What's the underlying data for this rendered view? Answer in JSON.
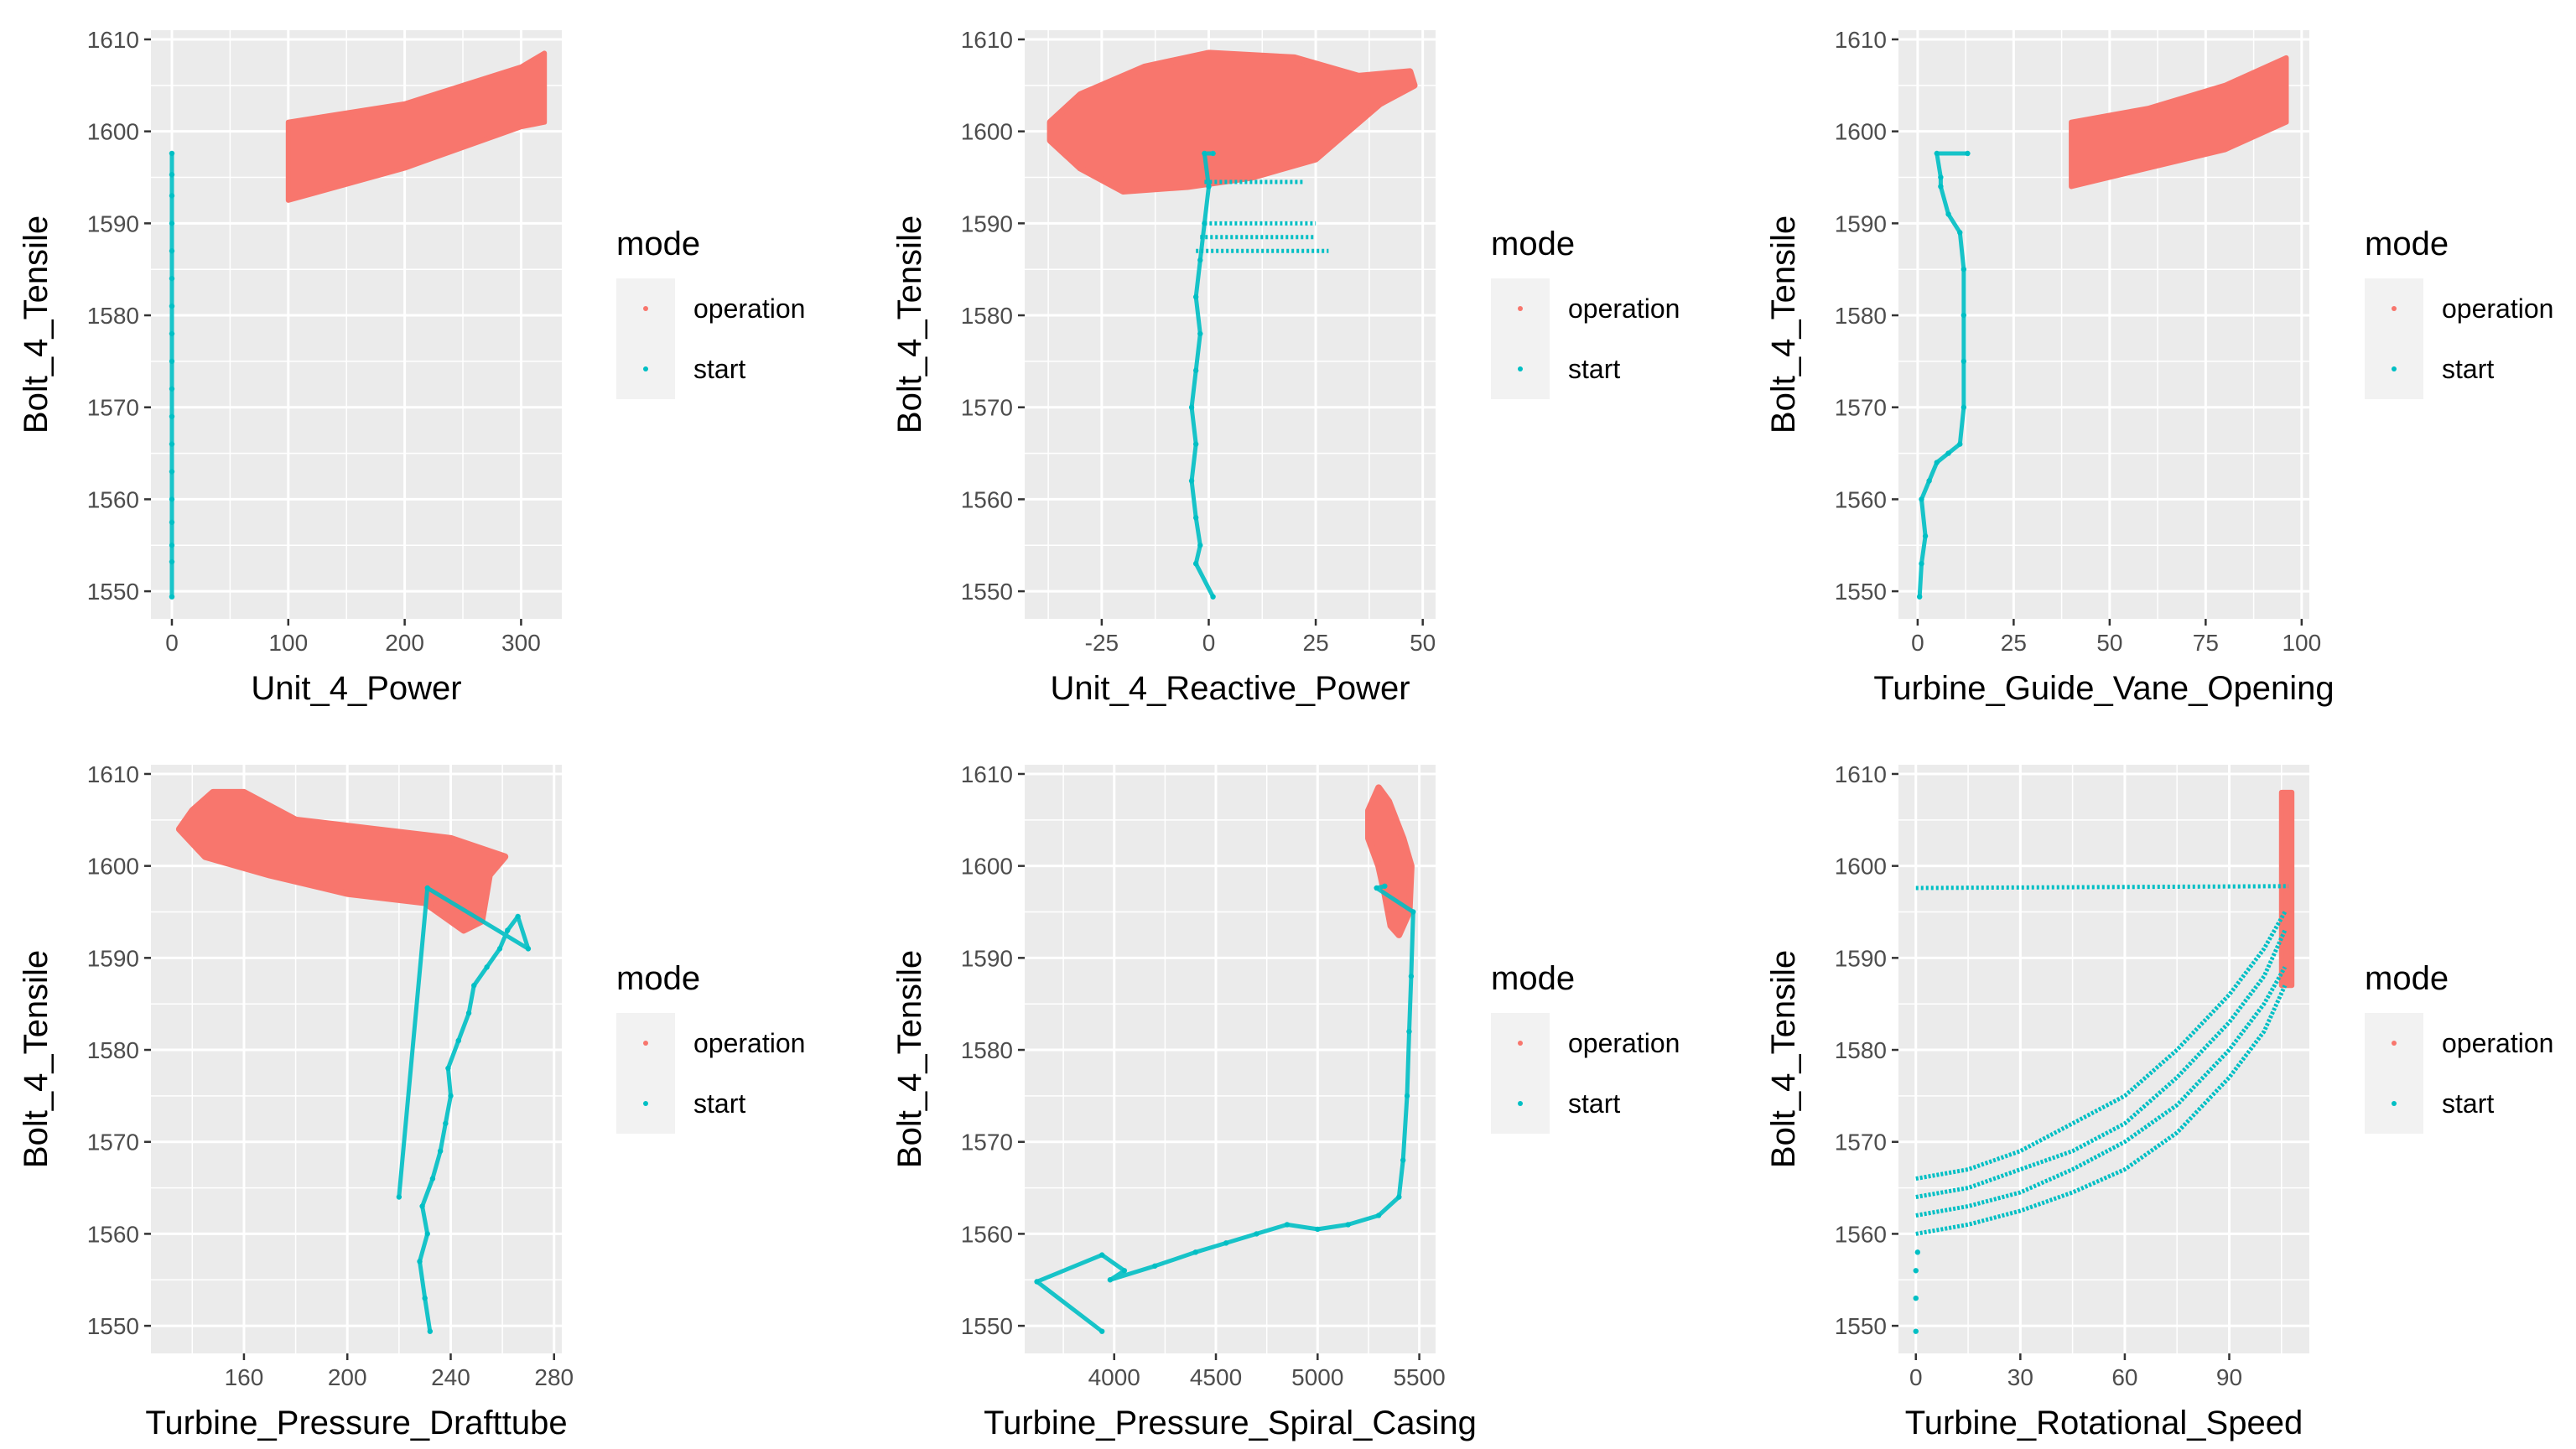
{
  "colors": {
    "operation": "#F8766D",
    "start": "#00BFC4",
    "panel": "#EBEBEB",
    "grid": "#FFFFFF"
  },
  "chart_data": [
    {
      "type": "scatter",
      "xlabel": "Unit_4_Power",
      "ylabel": "Bolt_4_Tensile",
      "xticks": [
        0,
        100,
        200,
        300
      ],
      "yticks": [
        1550,
        1560,
        1570,
        1580,
        1590,
        1600,
        1610
      ],
      "xlim": [
        -18,
        335
      ],
      "ylim": [
        1547,
        1611
      ],
      "legend": {
        "title": "mode",
        "entries": [
          "operation",
          "start"
        ],
        "placement": "right"
      },
      "series": [
        {
          "name": "operation",
          "shape": "band",
          "lower": [
            [
              100,
              1592.5
            ],
            [
              200,
              1596
            ],
            [
              300,
              1600.5
            ],
            [
              320,
              1601
            ]
          ],
          "upper": [
            [
              100,
              1601
            ],
            [
              200,
              1603
            ],
            [
              300,
              1607
            ],
            [
              320,
              1608.5
            ]
          ]
        },
        {
          "name": "start",
          "shape": "points",
          "points": [
            [
              0,
              1549.4
            ],
            [
              0,
              1553.2
            ],
            [
              0,
              1555
            ],
            [
              0,
              1557.5
            ],
            [
              0,
              1560
            ],
            [
              0,
              1563
            ],
            [
              0,
              1566
            ],
            [
              0,
              1569
            ],
            [
              0,
              1572
            ],
            [
              0,
              1575
            ],
            [
              0,
              1578
            ],
            [
              0,
              1581
            ],
            [
              0,
              1584
            ],
            [
              0,
              1587
            ],
            [
              0,
              1590
            ],
            [
              0,
              1593
            ],
            [
              0,
              1595.3
            ],
            [
              0,
              1597.6
            ]
          ]
        }
      ]
    },
    {
      "type": "scatter",
      "xlabel": "Unit_4_Reactive_Power",
      "ylabel": "Bolt_4_Tensile",
      "xticks": [
        -25,
        0,
        25,
        50
      ],
      "yticks": [
        1550,
        1560,
        1570,
        1580,
        1590,
        1600,
        1610
      ],
      "xlim": [
        -43,
        53
      ],
      "ylim": [
        1547,
        1611
      ],
      "legend": {
        "title": "mode",
        "entries": [
          "operation",
          "start"
        ],
        "placement": "right"
      },
      "series": [
        {
          "name": "operation",
          "shape": "blob",
          "outline": [
            [
              -37,
              1599
            ],
            [
              -30,
              1596
            ],
            [
              -20,
              1593.5
            ],
            [
              -5,
              1594
            ],
            [
              10,
              1595
            ],
            [
              25,
              1597
            ],
            [
              30,
              1599
            ],
            [
              40,
              1603
            ],
            [
              48,
              1605
            ],
            [
              47,
              1606.5
            ],
            [
              35,
              1606
            ],
            [
              20,
              1608
            ],
            [
              0,
              1608.5
            ],
            [
              -15,
              1607
            ],
            [
              -30,
              1604
            ],
            [
              -37,
              1601
            ]
          ]
        },
        {
          "name": "start",
          "shape": "points",
          "points": [
            [
              1,
              1549.4
            ],
            [
              -3,
              1553
            ],
            [
              -2,
              1555
            ],
            [
              -3,
              1558
            ],
            [
              -4,
              1562
            ],
            [
              -3,
              1566
            ],
            [
              -4,
              1570
            ],
            [
              -3,
              1574
            ],
            [
              -2,
              1578
            ],
            [
              -3,
              1582
            ],
            [
              -2,
              1586
            ],
            [
              -1,
              1590
            ],
            [
              0,
              1594
            ],
            [
              -1,
              1597.6
            ],
            [
              1,
              1597.6
            ]
          ]
        },
        {
          "name": "start",
          "shape": "lines",
          "segments": [
            [
              [
                -1,
                1594.5
              ],
              [
                22,
                1594.5
              ]
            ],
            [
              [
                -1,
                1590
              ],
              [
                25,
                1590
              ]
            ],
            [
              [
                -2,
                1588.5
              ],
              [
                25,
                1588.5
              ]
            ],
            [
              [
                -3,
                1587
              ],
              [
                28,
                1587
              ]
            ]
          ]
        }
      ]
    },
    {
      "type": "scatter",
      "xlabel": "Turbine_Guide_Vane_Opening",
      "ylabel": "Bolt_4_Tensile",
      "xticks": [
        0,
        25,
        50,
        75,
        100
      ],
      "yticks": [
        1550,
        1560,
        1570,
        1580,
        1590,
        1600,
        1610
      ],
      "xlim": [
        -5,
        102
      ],
      "ylim": [
        1547,
        1611
      ],
      "legend": {
        "title": "mode",
        "entries": [
          "operation",
          "start"
        ],
        "placement": "right"
      },
      "series": [
        {
          "name": "operation",
          "shape": "band",
          "lower": [
            [
              40,
              1594
            ],
            [
              60,
              1596
            ],
            [
              80,
              1598
            ],
            [
              96,
              1601
            ]
          ],
          "upper": [
            [
              40,
              1601
            ],
            [
              60,
              1602.5
            ],
            [
              80,
              1605
            ],
            [
              96,
              1608
            ]
          ]
        },
        {
          "name": "start",
          "shape": "points",
          "points": [
            [
              0.5,
              1549.4
            ],
            [
              1,
              1553
            ],
            [
              2,
              1556
            ],
            [
              1,
              1560
            ],
            [
              3,
              1562
            ],
            [
              5,
              1564
            ],
            [
              8,
              1565
            ],
            [
              11,
              1566
            ],
            [
              12,
              1570
            ],
            [
              12,
              1575
            ],
            [
              12,
              1580
            ],
            [
              12,
              1585
            ],
            [
              11,
              1589
            ],
            [
              8,
              1591
            ],
            [
              6,
              1594
            ],
            [
              6,
              1595
            ],
            [
              5,
              1597.6
            ],
            [
              13,
              1597.6
            ]
          ]
        }
      ]
    },
    {
      "type": "scatter",
      "xlabel": "Turbine_Pressure_Drafttube",
      "ylabel": "Bolt_4_Tensile",
      "xticks": [
        160,
        200,
        240,
        280
      ],
      "yticks": [
        1550,
        1560,
        1570,
        1580,
        1590,
        1600,
        1610
      ],
      "xlim": [
        124,
        283
      ],
      "ylim": [
        1547,
        1611
      ],
      "legend": {
        "title": "mode",
        "entries": [
          "operation",
          "start"
        ],
        "placement": "right"
      },
      "series": [
        {
          "name": "operation",
          "shape": "blob",
          "outline": [
            [
              135,
              1604
            ],
            [
              145,
              1601
            ],
            [
              170,
              1599
            ],
            [
              200,
              1597
            ],
            [
              230,
              1596
            ],
            [
              245,
              1593
            ],
            [
              252,
              1594
            ],
            [
              255,
              1599
            ],
            [
              261,
              1601
            ],
            [
              240,
              1603
            ],
            [
              210,
              1604
            ],
            [
              180,
              1605
            ],
            [
              160,
              1608
            ],
            [
              148,
              1608
            ],
            [
              140,
              1606
            ]
          ]
        },
        {
          "name": "start",
          "shape": "points",
          "points": [
            [
              232,
              1549.4
            ],
            [
              230,
              1553
            ],
            [
              228,
              1557
            ],
            [
              231,
              1560
            ],
            [
              229,
              1563
            ],
            [
              233,
              1566
            ],
            [
              236,
              1569
            ],
            [
              238,
              1572
            ],
            [
              240,
              1575
            ],
            [
              239,
              1578
            ],
            [
              243,
              1581
            ],
            [
              247,
              1584
            ],
            [
              249,
              1587
            ],
            [
              254,
              1589
            ],
            [
              259,
              1591
            ],
            [
              262,
              1593
            ],
            [
              266,
              1594.5
            ],
            [
              270,
              1591
            ],
            [
              231,
              1597.6
            ],
            [
              220,
              1564
            ]
          ]
        }
      ]
    },
    {
      "type": "scatter",
      "xlabel": "Turbine_Pressure_Spiral_Casing",
      "ylabel": "Bolt_4_Tensile",
      "xticks": [
        4000,
        4500,
        5000,
        5500
      ],
      "yticks": [
        1550,
        1560,
        1570,
        1580,
        1590,
        1600,
        1610
      ],
      "xlim": [
        3560,
        5580
      ],
      "ylim": [
        1547,
        1611
      ],
      "legend": {
        "title": "mode",
        "entries": [
          "operation",
          "start"
        ],
        "placement": "right"
      },
      "series": [
        {
          "name": "operation",
          "shape": "blob",
          "outline": [
            [
              5250,
              1606
            ],
            [
              5300,
              1608.5
            ],
            [
              5350,
              1607
            ],
            [
              5420,
              1603
            ],
            [
              5460,
              1600
            ],
            [
              5450,
              1595
            ],
            [
              5400,
              1592.5
            ],
            [
              5360,
              1593.5
            ],
            [
              5330,
              1597
            ],
            [
              5300,
              1600
            ],
            [
              5250,
              1603
            ]
          ]
        },
        {
          "name": "start",
          "shape": "points",
          "points": [
            [
              3940,
              1549.4
            ],
            [
              3620,
              1554.8
            ],
            [
              3940,
              1557.7
            ],
            [
              4050,
              1556
            ],
            [
              3980,
              1555
            ],
            [
              4200,
              1556.5
            ],
            [
              4400,
              1558
            ],
            [
              4550,
              1559
            ],
            [
              4700,
              1560
            ],
            [
              4850,
              1561
            ],
            [
              5000,
              1560.5
            ],
            [
              5150,
              1561
            ],
            [
              5300,
              1562
            ],
            [
              5400,
              1564
            ],
            [
              5420,
              1568
            ],
            [
              5440,
              1575
            ],
            [
              5450,
              1582
            ],
            [
              5460,
              1588
            ],
            [
              5470,
              1595
            ],
            [
              5290,
              1597.6
            ],
            [
              5330,
              1597.8
            ]
          ]
        }
      ]
    },
    {
      "type": "scatter",
      "xlabel": "Turbine_Rotational_Speed",
      "ylabel": "Bolt_4_Tensile",
      "xticks": [
        0,
        30,
        60,
        90
      ],
      "yticks": [
        1550,
        1560,
        1570,
        1580,
        1590,
        1600,
        1610
      ],
      "xlim": [
        -5,
        113
      ],
      "ylim": [
        1547,
        1611
      ],
      "legend": {
        "title": "mode",
        "entries": [
          "operation",
          "start"
        ],
        "placement": "right"
      },
      "series": [
        {
          "name": "operation",
          "shape": "band",
          "lower": [
            [
              105,
              1587
            ],
            [
              108,
              1587
            ]
          ],
          "upper": [
            [
              105,
              1608
            ],
            [
              108,
              1608
            ]
          ]
        },
        {
          "name": "start",
          "shape": "lines",
          "segments": [
            [
              [
                0,
                1597.6
              ],
              [
                107,
                1597.8
              ]
            ]
          ]
        },
        {
          "name": "start",
          "shape": "curves",
          "curves": [
            [
              [
                0,
                1566
              ],
              [
                15,
                1567
              ],
              [
                30,
                1569
              ],
              [
                45,
                1572
              ],
              [
                60,
                1575
              ],
              [
                75,
                1580
              ],
              [
                90,
                1586
              ],
              [
                100,
                1591
              ],
              [
                106,
                1595
              ]
            ],
            [
              [
                0,
                1564
              ],
              [
                15,
                1565
              ],
              [
                30,
                1567
              ],
              [
                45,
                1569
              ],
              [
                60,
                1572
              ],
              [
                75,
                1577
              ],
              [
                90,
                1583
              ],
              [
                100,
                1588
              ],
              [
                106,
                1593
              ]
            ],
            [
              [
                0,
                1562
              ],
              [
                15,
                1563
              ],
              [
                30,
                1564.5
              ],
              [
                45,
                1567
              ],
              [
                60,
                1570
              ],
              [
                75,
                1574
              ],
              [
                90,
                1580
              ],
              [
                100,
                1585
              ],
              [
                106,
                1589
              ]
            ],
            [
              [
                0,
                1560
              ],
              [
                15,
                1561
              ],
              [
                30,
                1562.5
              ],
              [
                45,
                1564.5
              ],
              [
                60,
                1567
              ],
              [
                75,
                1571
              ],
              [
                90,
                1577
              ],
              [
                100,
                1582
              ],
              [
                106,
                1587
              ]
            ]
          ]
        },
        {
          "name": "start",
          "shape": "points",
          "points": [
            [
              0,
              1549.4
            ],
            [
              0,
              1553
            ],
            [
              0,
              1556
            ],
            [
              0.5,
              1558
            ]
          ]
        }
      ]
    }
  ]
}
